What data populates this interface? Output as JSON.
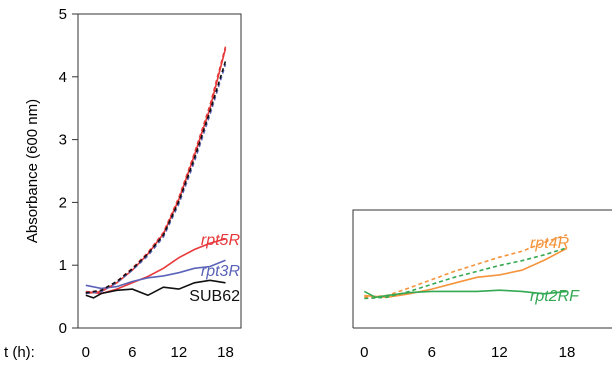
{
  "chart_data": [
    {
      "type": "line",
      "ylabel": "Absorbance (600 nm)",
      "xlabel_prefix": "t (h):",
      "ylim": [
        0,
        5
      ],
      "xlim": [
        -1,
        20
      ],
      "yticks": [
        0,
        1,
        2,
        3,
        4,
        5
      ],
      "xticks": [
        0,
        6,
        12,
        18
      ],
      "grid": false,
      "series": [
        {
          "name": "rpt5R",
          "color": "#e8393b",
          "dash": false,
          "italic": true,
          "x": [
            0,
            2,
            4,
            6,
            8,
            10,
            12,
            14,
            16,
            18
          ],
          "y": [
            0.58,
            0.55,
            0.62,
            0.72,
            0.82,
            0.95,
            1.12,
            1.25,
            1.35,
            1.42
          ]
        },
        {
          "name": "rpt3R",
          "color": "#5b63b8",
          "dash": false,
          "italic": true,
          "x": [
            0,
            2,
            4,
            6,
            8,
            10,
            12,
            14,
            16,
            18
          ],
          "y": [
            0.68,
            0.63,
            0.66,
            0.74,
            0.8,
            0.83,
            0.88,
            0.95,
            0.98,
            1.08
          ]
        },
        {
          "name": "SUB62",
          "color": "#111111",
          "dash": false,
          "italic": false,
          "x": [
            0,
            1,
            2,
            4,
            6,
            8,
            10,
            12,
            14,
            16,
            18
          ],
          "y": [
            0.52,
            0.48,
            0.55,
            0.6,
            0.62,
            0.52,
            0.65,
            0.62,
            0.72,
            0.76,
            0.72
          ]
        },
        {
          "color": "#e8393b",
          "dash": false,
          "x": [
            0,
            2,
            4,
            6,
            8,
            10,
            12,
            14,
            16,
            18
          ],
          "y": [
            0.55,
            0.58,
            0.72,
            0.92,
            1.18,
            1.5,
            2.05,
            2.75,
            3.5,
            4.45
          ]
        },
        {
          "color": "#e8393b",
          "dash": true,
          "x": [
            0,
            2,
            4,
            6,
            8,
            10,
            12,
            14,
            16,
            18
          ],
          "y": [
            0.56,
            0.6,
            0.74,
            0.95,
            1.2,
            1.52,
            2.08,
            2.78,
            3.55,
            4.48
          ]
        },
        {
          "color": "#5b63b8",
          "dash": true,
          "x": [
            0,
            2,
            4,
            6,
            8,
            10,
            12,
            14,
            16,
            18
          ],
          "y": [
            0.55,
            0.58,
            0.72,
            0.92,
            1.15,
            1.45,
            1.98,
            2.65,
            3.4,
            4.2
          ]
        },
        {
          "color": "#111111",
          "dash": true,
          "x": [
            0,
            2,
            4,
            6,
            8,
            10,
            12,
            14,
            16,
            18
          ],
          "y": [
            0.56,
            0.6,
            0.74,
            0.94,
            1.18,
            1.48,
            2.02,
            2.7,
            3.45,
            4.25
          ]
        }
      ]
    },
    {
      "type": "line",
      "ylim": [
        0,
        2
      ],
      "xlim": [
        -1,
        22
      ],
      "xticks": [
        0,
        6,
        12,
        18
      ],
      "grid": false,
      "series": [
        {
          "name": "rpt4R",
          "color": "#f5943c",
          "dash": false,
          "italic": true,
          "x": [
            0,
            2,
            4,
            6,
            8,
            10,
            12,
            14,
            16,
            18
          ],
          "y": [
            0.55,
            0.52,
            0.58,
            0.66,
            0.76,
            0.86,
            0.9,
            0.98,
            1.15,
            1.35
          ]
        },
        {
          "color": "#f5943c",
          "dash": true,
          "x": [
            0,
            2,
            4,
            6,
            8,
            10,
            12,
            14,
            16,
            18
          ],
          "y": [
            0.52,
            0.55,
            0.68,
            0.82,
            0.96,
            1.08,
            1.2,
            1.3,
            1.45,
            1.58
          ]
        },
        {
          "name": "rpt2RF",
          "color": "#34a853",
          "dash": false,
          "italic": true,
          "x": [
            0,
            1,
            2,
            4,
            6,
            8,
            10,
            12,
            14,
            16,
            18
          ],
          "y": [
            0.62,
            0.52,
            0.55,
            0.6,
            0.62,
            0.62,
            0.62,
            0.64,
            0.62,
            0.58,
            0.62
          ]
        },
        {
          "color": "#34a853",
          "dash": true,
          "x": [
            0,
            2,
            4,
            6,
            8,
            10,
            12,
            14,
            16,
            18
          ],
          "y": [
            0.5,
            0.52,
            0.62,
            0.74,
            0.86,
            0.96,
            1.06,
            1.14,
            1.24,
            1.36
          ]
        }
      ]
    }
  ]
}
